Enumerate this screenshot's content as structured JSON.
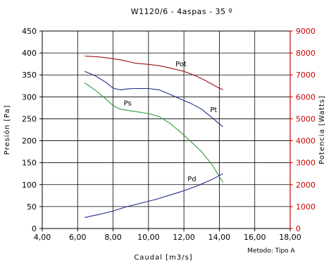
{
  "chart_data": {
    "type": "line",
    "title": "W1120/6 - 4aspas - 35 º",
    "xlabel": "Caudal [m3/s]",
    "ylabel": "Presión [Pa]",
    "y2label": "Potencia [Watts]",
    "note": "Metodo: Tipo A",
    "xlim": [
      4,
      18
    ],
    "ylim": [
      0,
      450
    ],
    "y2lim": [
      0,
      9000
    ],
    "grid": true,
    "x_ticks": [
      "4,00",
      "6,00",
      "8,00",
      "10,00",
      "12,00",
      "14,00",
      "16,00",
      "18,00"
    ],
    "y_ticks": [
      "0",
      "50",
      "100",
      "150",
      "200",
      "250",
      "300",
      "350",
      "400",
      "450"
    ],
    "y2_ticks": [
      "0",
      "1000",
      "2000",
      "3000",
      "4000",
      "5000",
      "6000",
      "7000",
      "8000",
      "9000"
    ],
    "colors": {
      "axis_right": "#cc0000",
      "pot": "#a01010",
      "pt": "#1e2a8a",
      "ps": "#2e9a3a",
      "pd": "#1e2a8a"
    },
    "series": [
      {
        "name": "Pot",
        "axis": "right",
        "x": [
          6.4,
          7.2,
          8.0,
          8.6,
          9.2,
          10.0,
          10.6,
          11.2,
          12.0,
          12.6,
          13.2,
          13.8,
          14.2
        ],
        "values": [
          7860,
          7820,
          7740,
          7660,
          7540,
          7480,
          7420,
          7320,
          7160,
          6980,
          6750,
          6480,
          6320
        ]
      },
      {
        "name": "Pt",
        "axis": "left",
        "x": [
          6.4,
          7.0,
          7.6,
          8.0,
          8.4,
          8.8,
          9.2,
          10.0,
          10.6,
          11.2,
          11.8,
          12.4,
          13.0,
          13.6,
          14.2
        ],
        "values": [
          358,
          348,
          333,
          320,
          316,
          318,
          319,
          319,
          316,
          306,
          295,
          285,
          272,
          252,
          232
        ]
      },
      {
        "name": "Ps",
        "axis": "left",
        "x": [
          6.4,
          7.0,
          7.6,
          8.0,
          8.4,
          9.0,
          10.0,
          10.6,
          11.2,
          11.8,
          12.4,
          13.0,
          13.6,
          14.2
        ],
        "values": [
          332,
          315,
          295,
          280,
          272,
          268,
          262,
          255,
          240,
          220,
          198,
          175,
          145,
          105
        ]
      },
      {
        "name": "Pd",
        "axis": "left",
        "x": [
          6.4,
          7.2,
          8.0,
          8.8,
          9.6,
          10.4,
          11.2,
          12.0,
          12.8,
          13.6,
          14.2
        ],
        "values": [
          25,
          32,
          40,
          50,
          58,
          66,
          76,
          86,
          98,
          112,
          125
        ]
      }
    ]
  }
}
